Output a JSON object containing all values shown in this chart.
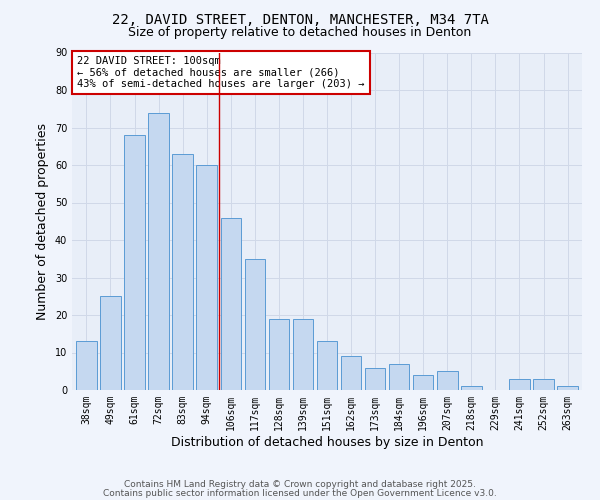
{
  "title_line1": "22, DAVID STREET, DENTON, MANCHESTER, M34 7TA",
  "title_line2": "Size of property relative to detached houses in Denton",
  "xlabel": "Distribution of detached houses by size in Denton",
  "ylabel": "Number of detached properties",
  "categories": [
    "38sqm",
    "49sqm",
    "61sqm",
    "72sqm",
    "83sqm",
    "94sqm",
    "106sqm",
    "117sqm",
    "128sqm",
    "139sqm",
    "151sqm",
    "162sqm",
    "173sqm",
    "184sqm",
    "196sqm",
    "207sqm",
    "218sqm",
    "229sqm",
    "241sqm",
    "252sqm",
    "263sqm"
  ],
  "values": [
    13,
    25,
    68,
    74,
    63,
    60,
    46,
    35,
    19,
    19,
    13,
    9,
    6,
    7,
    4,
    5,
    1,
    0,
    3,
    3,
    1
  ],
  "bar_color": "#c5d8f0",
  "bar_edge_color": "#5b9bd5",
  "red_line_x": 5.5,
  "annotation_text": "22 DAVID STREET: 100sqm\n← 56% of detached houses are smaller (266)\n43% of semi-detached houses are larger (203) →",
  "annotation_box_color": "#ffffff",
  "annotation_box_edge_color": "#cc0000",
  "ylim": [
    0,
    90
  ],
  "yticks": [
    0,
    10,
    20,
    30,
    40,
    50,
    60,
    70,
    80,
    90
  ],
  "grid_color": "#d0d8e8",
  "background_color": "#e8eef8",
  "fig_background_color": "#f0f4fc",
  "footer_line1": "Contains HM Land Registry data © Crown copyright and database right 2025.",
  "footer_line2": "Contains public sector information licensed under the Open Government Licence v3.0.",
  "title_fontsize": 10,
  "subtitle_fontsize": 9,
  "axis_label_fontsize": 9,
  "tick_fontsize": 7,
  "annotation_fontsize": 7.5,
  "footer_fontsize": 6.5
}
